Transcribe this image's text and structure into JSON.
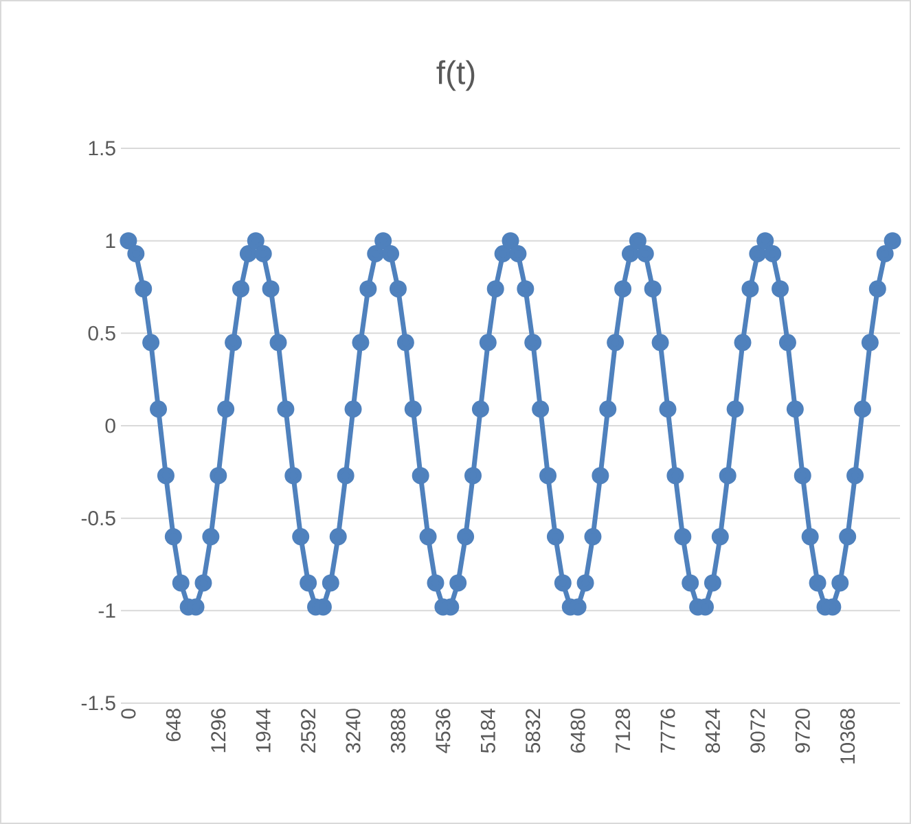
{
  "chart_data": {
    "type": "line",
    "title": "f(t)",
    "categories": [
      "0",
      null,
      null,
      null,
      null,
      null,
      "648",
      null,
      null,
      null,
      null,
      null,
      "1296",
      null,
      null,
      null,
      null,
      null,
      "1944",
      null,
      null,
      null,
      null,
      null,
      "2592",
      null,
      null,
      null,
      null,
      null,
      "3240",
      null,
      null,
      null,
      null,
      null,
      "3888",
      null,
      null,
      null,
      null,
      null,
      "4536",
      null,
      null,
      null,
      null,
      null,
      "5184",
      null,
      null,
      null,
      null,
      null,
      "5832",
      null,
      null,
      null,
      null,
      null,
      "6480",
      null,
      null,
      null,
      null,
      null,
      "7128",
      null,
      null,
      null,
      null,
      null,
      "7776",
      null,
      null,
      null,
      null,
      null,
      "8424",
      null,
      null,
      null,
      null,
      null,
      "9072",
      null,
      null,
      null,
      null,
      null,
      "9720",
      null,
      null,
      null,
      null,
      null,
      "10368",
      null,
      null,
      null,
      null,
      null,
      null
    ],
    "series": [
      {
        "color": "#4f81bd",
        "values": [
          1,
          0.93,
          0.74,
          0.45,
          0.09,
          -0.27,
          -0.6,
          -0.85,
          -0.98,
          -0.98,
          -0.85,
          -0.6,
          -0.27,
          0.09,
          0.45,
          0.74,
          0.93,
          1,
          0.93,
          0.74,
          0.45,
          0.09,
          -0.27,
          -0.6,
          -0.85,
          -0.98,
          -0.98,
          -0.85,
          -0.6,
          -0.27,
          0.09,
          0.45,
          0.74,
          0.93,
          1,
          0.93,
          0.74,
          0.45,
          0.09,
          -0.27,
          -0.6,
          -0.85,
          -0.98,
          -0.98,
          -0.85,
          -0.6,
          -0.27,
          0.09,
          0.45,
          0.74,
          0.93,
          1,
          0.93,
          0.74,
          0.45,
          0.09,
          -0.27,
          -0.6,
          -0.85,
          -0.98,
          -0.98,
          -0.85,
          -0.6,
          -0.27,
          0.09,
          0.45,
          0.74,
          0.93,
          1,
          0.93,
          0.74,
          0.45,
          0.09,
          -0.27,
          -0.6,
          -0.85,
          -0.98,
          -0.98,
          -0.85,
          -0.6,
          -0.27,
          0.09,
          0.45,
          0.74,
          0.93,
          1,
          0.93,
          0.74,
          0.45,
          0.09,
          -0.27,
          -0.6,
          -0.85,
          -0.98,
          -0.98,
          -0.85,
          -0.6,
          -0.27,
          0.09,
          0.45,
          0.74,
          0.93,
          1
        ]
      }
    ],
    "ylim": [
      -1.5,
      1.5
    ],
    "yticks": [
      -1.5,
      -1,
      -0.5,
      0,
      0.5,
      1,
      1.5
    ],
    "grid": "y",
    "legend": false,
    "marker": "circle",
    "line_style": "solid"
  }
}
